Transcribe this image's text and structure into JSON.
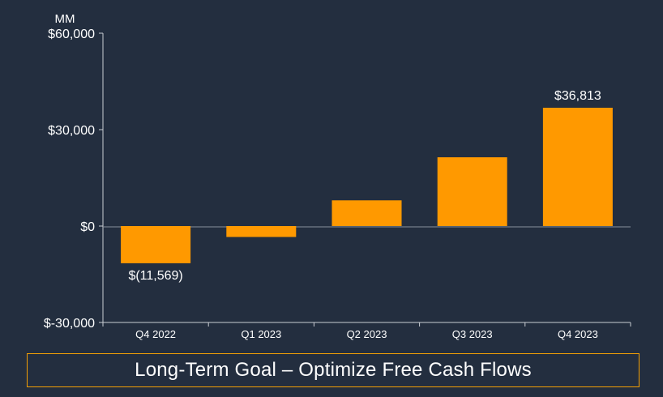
{
  "chart_data": {
    "type": "bar",
    "unit_label": "MM",
    "categories": [
      "Q4 2022",
      "Q1 2023",
      "Q2 2023",
      "Q3 2023",
      "Q4 2023"
    ],
    "values": [
      -11569,
      -3400,
      8000,
      21400,
      36813
    ],
    "data_labels": [
      "$(11,569)",
      "",
      "",
      "",
      "$36,813"
    ],
    "ylim": [
      -30000,
      60000
    ],
    "yticks": [
      60000,
      30000,
      0,
      -30000
    ],
    "ytick_labels": [
      "$60,000",
      "$30,000",
      "$0",
      "$-30,000"
    ],
    "bar_color": "#ff9900",
    "grid": false
  },
  "footer": {
    "goal_text": "Long-Term Goal – Optimize Free Cash Flows",
    "border_color": "#f29f05"
  }
}
